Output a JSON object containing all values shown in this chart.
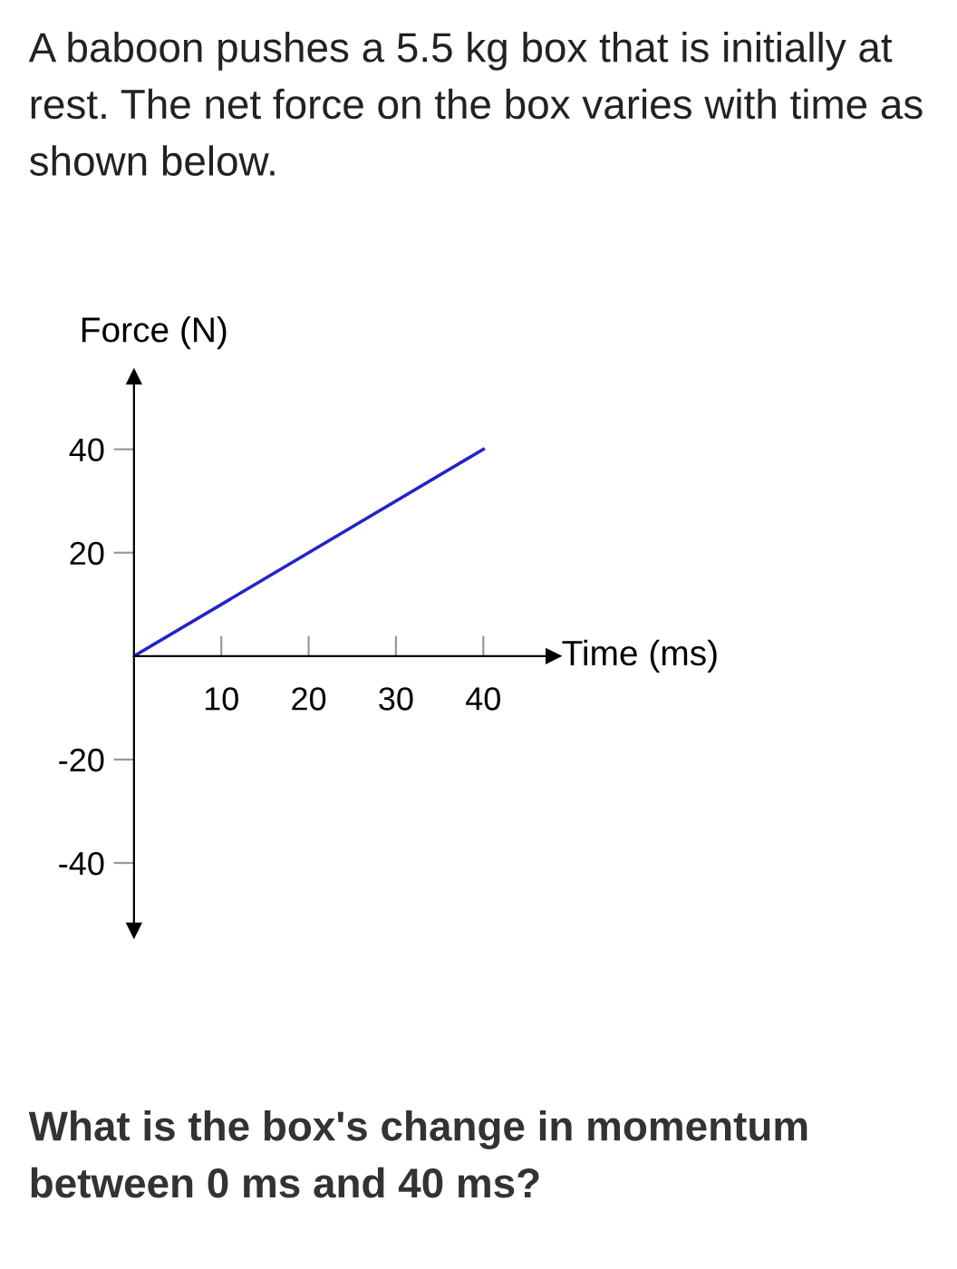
{
  "chart_data": {
    "type": "line",
    "title": "A baboon pushes a 5.5 kg box that is initially at rest. The net force on the box varies with time as shown below.",
    "annotations": [
      "What is the box's change in momentum between 0 ms and 40 ms?"
    ],
    "xlabel": "Time (ms)",
    "ylabel": "Force (N)",
    "x": [
      0,
      40
    ],
    "series": [
      {
        "color": "#2323c8",
        "values": [
          0,
          40
        ]
      }
    ],
    "xlim": [
      0,
      48
    ],
    "ylim": [
      -53,
      54
    ],
    "xticks": [
      10,
      20,
      30,
      40
    ],
    "yticks": [
      -40,
      -20,
      20,
      40
    ],
    "grid": false
  }
}
